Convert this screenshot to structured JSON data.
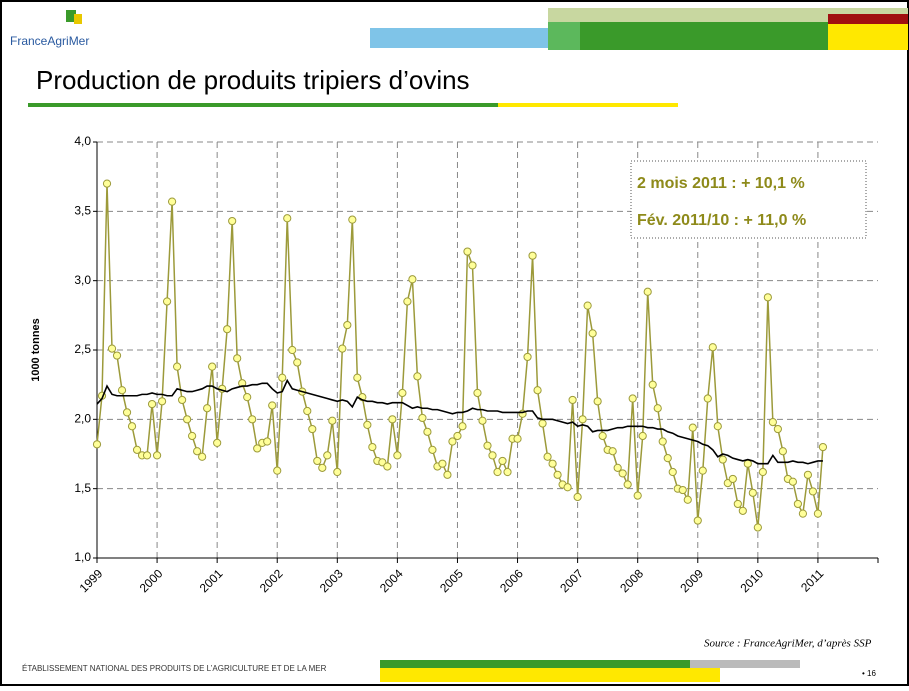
{
  "header": {
    "logo": "FranceAgriMer",
    "title": "Production de produits tripiers d’ovins"
  },
  "chart_data": {
    "type": "line",
    "y_label": "1000 tonnes",
    "annotations": [
      "2 mois 2011 : + 10,1 %",
      "Fév. 2011/10 : + 11,0 %"
    ],
    "categories": [
      "1999",
      null,
      null,
      null,
      null,
      null,
      null,
      null,
      null,
      null,
      null,
      null,
      "2000",
      null,
      null,
      null,
      null,
      null,
      null,
      null,
      null,
      null,
      null,
      null,
      "2001",
      null,
      null,
      null,
      null,
      null,
      null,
      null,
      null,
      null,
      null,
      null,
      "2002",
      null,
      null,
      null,
      null,
      null,
      null,
      null,
      null,
      null,
      null,
      null,
      "2003",
      null,
      null,
      null,
      null,
      null,
      null,
      null,
      null,
      null,
      null,
      null,
      "2004",
      null,
      null,
      null,
      null,
      null,
      null,
      null,
      null,
      null,
      null,
      null,
      "2005",
      null,
      null,
      null,
      null,
      null,
      null,
      null,
      null,
      null,
      null,
      null,
      "2006",
      null,
      null,
      null,
      null,
      null,
      null,
      null,
      null,
      null,
      null,
      null,
      "2007",
      null,
      null,
      null,
      null,
      null,
      null,
      null,
      null,
      null,
      null,
      null,
      "2008",
      null,
      null,
      null,
      null,
      null,
      null,
      null,
      null,
      null,
      null,
      null,
      "2009",
      null,
      null,
      null,
      null,
      null,
      null,
      null,
      null,
      null,
      null,
      null,
      "2010",
      null,
      null,
      null,
      null,
      null,
      null,
      null,
      null,
      null,
      null,
      null,
      "2011",
      null,
      null,
      null,
      null,
      null,
      null,
      null,
      null,
      null,
      null,
      null,
      null
    ],
    "series": [
      {
        "color": "#9c9a3a",
        "marker_fill": "#ffff99",
        "values": [
          1.82,
          2.17,
          3.7,
          2.51,
          2.46,
          2.21,
          2.05,
          1.95,
          1.78,
          1.74,
          1.74,
          2.11,
          1.74,
          2.13,
          2.85,
          3.57,
          2.38,
          2.14,
          2.0,
          1.88,
          1.77,
          1.73,
          2.08,
          2.38,
          1.83,
          2.22,
          2.65,
          3.43,
          2.44,
          2.26,
          2.16,
          2.0,
          1.79,
          1.83,
          1.84,
          2.1,
          1.63,
          2.3,
          3.45,
          2.5,
          2.41,
          2.2,
          2.06,
          1.93,
          1.7,
          1.65,
          1.74,
          1.99,
          1.62,
          2.51,
          2.68,
          3.44,
          2.3,
          2.16,
          1.96,
          1.8,
          1.7,
          1.69,
          1.66,
          2.0,
          1.74,
          2.19,
          2.85,
          3.01,
          2.31,
          2.01,
          1.91,
          1.78,
          1.66,
          1.68,
          1.6,
          1.84,
          1.88,
          1.95,
          3.21,
          3.11,
          2.19,
          1.99,
          1.81,
          1.74,
          1.62,
          1.7,
          1.62,
          1.86,
          1.86,
          2.04,
          2.45,
          3.18,
          2.21,
          1.97,
          1.73,
          1.68,
          1.6,
          1.53,
          1.51,
          2.14,
          1.44,
          2.0,
          2.82,
          2.62,
          2.13,
          1.88,
          1.78,
          1.77,
          1.65,
          1.61,
          1.53,
          2.15,
          1.45,
          1.88,
          2.92,
          2.25,
          2.08,
          1.84,
          1.72,
          1.62,
          1.5,
          1.49,
          1.42,
          1.94,
          1.27,
          1.63,
          2.15,
          2.52,
          1.95,
          1.71,
          1.54,
          1.57,
          1.39,
          1.34,
          1.68,
          1.47,
          1.22,
          1.62,
          2.88,
          1.98,
          1.93,
          1.77,
          1.57,
          1.55,
          1.39,
          1.32,
          1.6,
          1.48,
          1.32,
          1.8,
          null,
          null,
          null,
          null,
          null,
          null,
          null,
          null,
          null,
          null,
          null
        ]
      },
      {
        "color": "#000000",
        "values": [
          2.11,
          2.15,
          2.24,
          2.18,
          2.17,
          2.17,
          2.17,
          2.17,
          2.17,
          2.18,
          2.18,
          2.19,
          2.18,
          2.18,
          2.17,
          2.17,
          2.22,
          2.21,
          2.2,
          2.2,
          2.21,
          2.22,
          2.24,
          2.24,
          2.22,
          2.21,
          2.2,
          2.22,
          2.23,
          2.24,
          2.24,
          2.25,
          2.25,
          2.26,
          2.26,
          2.22,
          2.19,
          2.2,
          2.28,
          2.22,
          2.21,
          2.2,
          2.19,
          2.18,
          2.17,
          2.16,
          2.15,
          2.14,
          2.13,
          2.14,
          2.13,
          2.09,
          2.16,
          2.14,
          2.13,
          2.13,
          2.12,
          2.12,
          2.11,
          2.12,
          2.12,
          2.12,
          2.1,
          2.08,
          2.09,
          2.08,
          2.08,
          2.07,
          2.07,
          2.06,
          2.05,
          2.04,
          2.05,
          2.05,
          2.06,
          2.08,
          2.07,
          2.07,
          2.06,
          2.06,
          2.06,
          2.05,
          2.05,
          2.05,
          2.05,
          2.05,
          2.06,
          2.06,
          2.01,
          2.0,
          2.0,
          2.0,
          1.99,
          1.98,
          1.97,
          1.98,
          1.95,
          1.96,
          1.95,
          1.91,
          1.92,
          1.92,
          1.92,
          1.93,
          1.94,
          1.94,
          1.95,
          1.95,
          1.95,
          1.95,
          1.94,
          1.94,
          1.93,
          1.93,
          1.91,
          1.9,
          1.88,
          1.87,
          1.86,
          1.85,
          1.84,
          1.82,
          1.81,
          1.78,
          1.73,
          1.75,
          1.74,
          1.72,
          1.71,
          1.7,
          1.71,
          1.7,
          1.68,
          1.68,
          1.68,
          1.74,
          1.69,
          1.69,
          1.69,
          1.7,
          1.69,
          1.69,
          1.68,
          1.69,
          1.7,
          1.7,
          null,
          null,
          null,
          null,
          null,
          null,
          null,
          null,
          null,
          null,
          null
        ]
      }
    ],
    "ylim": [
      1,
      4
    ],
    "yticks": [
      {
        "value": 1,
        "label": "1,0"
      },
      {
        "value": 1.5,
        "label": "1,5"
      },
      {
        "value": 2,
        "label": "2,0"
      },
      {
        "value": 2.5,
        "label": "2,5"
      },
      {
        "value": 3,
        "label": "3,0"
      },
      {
        "value": 3.5,
        "label": "3,5"
      },
      {
        "value": 4,
        "label": "4,0"
      }
    ],
    "grid": true
  },
  "footer": {
    "institution": "ÉTABLISSEMENT NATIONAL DES PRODUITS DE L’AGRICULTURE ET DE LA MER",
    "source": "Source : FranceAgriMer, d’après SSP",
    "page": "• 16"
  }
}
